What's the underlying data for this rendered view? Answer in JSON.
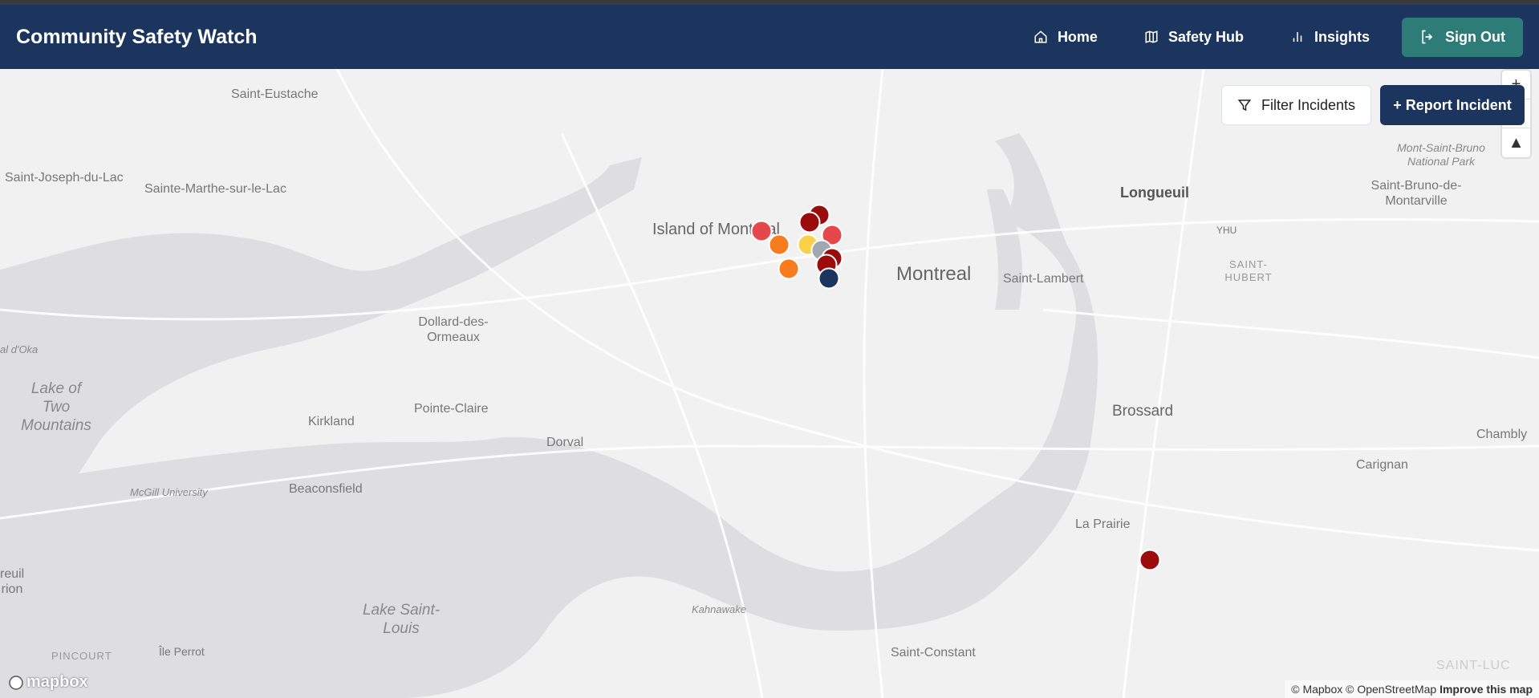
{
  "header": {
    "title": "Community Safety Watch",
    "nav": [
      {
        "label": "Home",
        "icon": "home-icon"
      },
      {
        "label": "Safety Hub",
        "icon": "map-icon"
      },
      {
        "label": "Insights",
        "icon": "bar-chart-icon"
      }
    ],
    "sign_out": "Sign Out"
  },
  "map": {
    "filter_label": "Filter Incidents",
    "report_label": "+ Report Incident",
    "zoom_in": "+",
    "compass": "▲",
    "labels": [
      "Saint-Eustache",
      "Saint-Joseph-du-Lac",
      "Sainte-Marthe-sur-le-Lac",
      "Island of Montreal",
      "Montreal",
      "Longueuil",
      "YHU",
      "SAINT-HUBERT",
      "Saint-Lambert",
      "Mont-Saint-Bruno National Park",
      "Saint-Bruno-de-Montarville",
      "Dollard-des-Ormeaux",
      "Lake of Two Mountains",
      "Pointe-Claire",
      "Kirkland",
      "Dorval",
      "Beaconsfield",
      "McGill University",
      "Brossard",
      "Chambly",
      "Carignan",
      "La Prairie",
      "Kahnawake",
      "Lake Saint-Louis",
      "Île Perrot",
      "PINCOURT",
      "Saint-Constant",
      "SAINT-LUC",
      "al d'Oka",
      "reuil-rion"
    ],
    "markers": [
      {
        "severity_color": "#e5474b"
      },
      {
        "severity_color": "#f67c1f"
      },
      {
        "severity_color": "#f67c1f"
      },
      {
        "severity_color": "#9b0b0b"
      },
      {
        "severity_color": "#9b0b0b"
      },
      {
        "severity_color": "#e5474b"
      },
      {
        "severity_color": "#fbd14b"
      },
      {
        "severity_color": "#a0a7b1"
      },
      {
        "severity_color": "#9b0b0b"
      },
      {
        "severity_color": "#9b0b0b"
      },
      {
        "severity_color": "#1c355e"
      },
      {
        "severity_color": "#9b0b0b"
      }
    ],
    "logo": "mapbox",
    "attribution": "© Mapbox © OpenStreetMap",
    "improve": "Improve this map"
  }
}
